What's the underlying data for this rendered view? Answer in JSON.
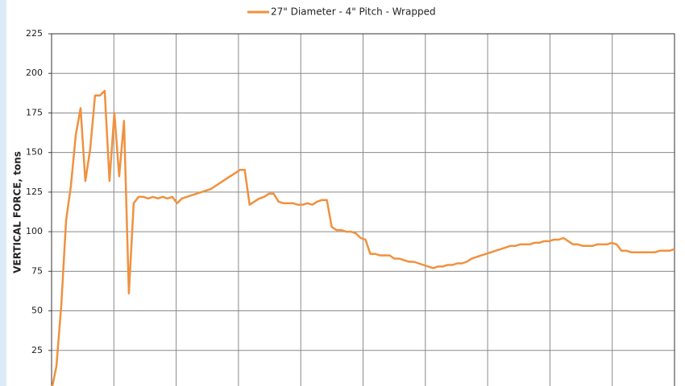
{
  "chart_data": {
    "type": "line",
    "y_label": "VERTICAL FORCE, tons",
    "ylim": [
      0,
      225
    ],
    "yticks": [
      25,
      50,
      75,
      100,
      125,
      150,
      175,
      200,
      225
    ],
    "grid": true,
    "legend": "top",
    "series": [
      {
        "name": "27\" Diameter - 4\" Pitch - Wrapped",
        "color": "#f0913f",
        "values": [
          0,
          15,
          53,
          107,
          129,
          161,
          178,
          132,
          152,
          186,
          186,
          189,
          132,
          175,
          135,
          170,
          61,
          118,
          122,
          122,
          121,
          122,
          121,
          122,
          121,
          122,
          118,
          121,
          122,
          123,
          124,
          125,
          126,
          127,
          129,
          131,
          133,
          135,
          137,
          139,
          139,
          117,
          119,
          121,
          122,
          124,
          124,
          119,
          118,
          118,
          118,
          117,
          117,
          118,
          117,
          119,
          120,
          120,
          103,
          101,
          101,
          100,
          100,
          99,
          96,
          95,
          86,
          86,
          85,
          85,
          85,
          83,
          83,
          82,
          81,
          81,
          80,
          79,
          78,
          77,
          78,
          78,
          79,
          79,
          80,
          80,
          81,
          83,
          84,
          85,
          86,
          87,
          88,
          89,
          90,
          91,
          91,
          92,
          92,
          92,
          93,
          93,
          94,
          94,
          95,
          95,
          96,
          94,
          92,
          92,
          91,
          91,
          91,
          92,
          92,
          92,
          93,
          92,
          88,
          88,
          87,
          87,
          87,
          87,
          87,
          87,
          88,
          88,
          88,
          89
        ]
      }
    ]
  }
}
